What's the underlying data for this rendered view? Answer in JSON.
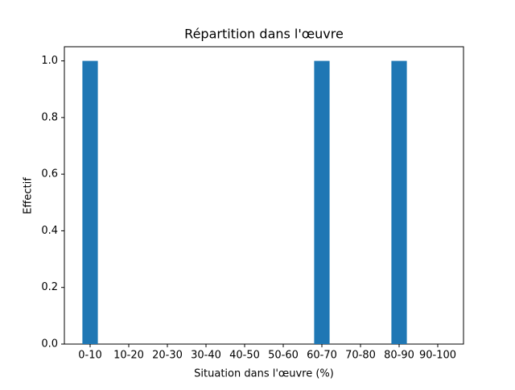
{
  "chart_data": {
    "type": "bar",
    "title": "Répartition dans l'œuvre",
    "x_label": "Situation dans l'œuvre (%)",
    "y_label": "Effectif",
    "categories": [
      "0-10",
      "10-20",
      "20-30",
      "30-40",
      "40-50",
      "50-60",
      "60-70",
      "70-80",
      "80-90",
      "90-100"
    ],
    "values": [
      1,
      0,
      0,
      0,
      0,
      0,
      1,
      0,
      1,
      0
    ],
    "color": "#1f77b4",
    "ylim": [
      0,
      1.05
    ],
    "yticks": [
      {
        "value": 0,
        "label": "0.0"
      },
      0.2,
      0.4,
      0.6,
      0.8,
      {
        "value": 1,
        "label": "1.0"
      }
    ],
    "grid": false
  }
}
